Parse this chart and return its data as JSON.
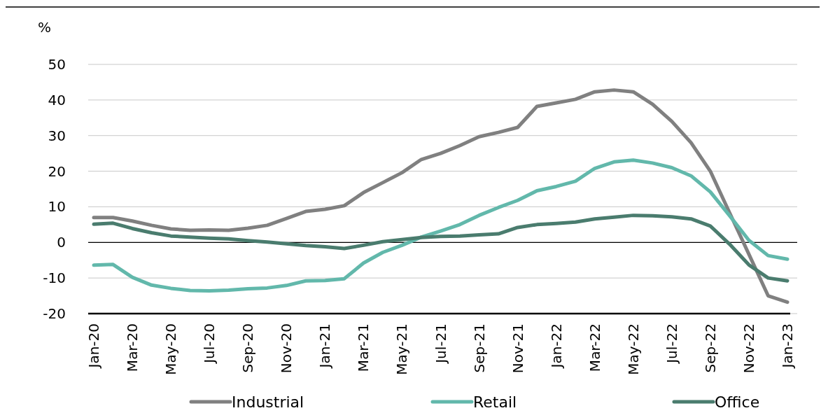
{
  "chart_data": {
    "type": "line",
    "ylabel": "%",
    "categories": [
      "Jan-20",
      null,
      "Mar-20",
      null,
      "May-20",
      null,
      "Jul-20",
      null,
      "Sep-20",
      null,
      "Nov-20",
      null,
      "Jan-21",
      null,
      "Mar-21",
      null,
      "May-21",
      null,
      "Jul-21",
      null,
      "Sep-21",
      null,
      "Nov-21",
      null,
      "Jan-22",
      null,
      "Mar-22",
      null,
      "May-22",
      null,
      "Jul-22",
      null,
      "Sep-22",
      null,
      "Nov-22",
      null,
      "Jan-23"
    ],
    "series": [
      {
        "name": "Industrial",
        "color": "#808080",
        "values": [
          7,
          7,
          6,
          4.8,
          3.8,
          3.4,
          3.5,
          3.4,
          4,
          4.8,
          6.7,
          8.7,
          9.3,
          10.3,
          14,
          16.8,
          19.6,
          23.3,
          25,
          27.2,
          29.7,
          30.9,
          32.3,
          38.2,
          39.2,
          40.2,
          42.3,
          42.8,
          42.3,
          38.8,
          34,
          28,
          20,
          8.3,
          -3.3,
          -15,
          -16.8
        ]
      },
      {
        "name": "Retail",
        "color": "#62b8ab",
        "values": [
          -6.4,
          -6.2,
          -9.8,
          -12,
          -12.9,
          -13.5,
          -13.6,
          -13.4,
          -13,
          -12.8,
          -12.1,
          -10.8,
          -10.7,
          -10.2,
          -5.8,
          -2.8,
          -0.8,
          1.5,
          3.2,
          5,
          7.6,
          9.8,
          11.8,
          14.5,
          15.7,
          17.2,
          20.8,
          22.6,
          23.1,
          22.3,
          21,
          18.7,
          14.2,
          7.5,
          0.6,
          -3.7,
          -4.7
        ]
      },
      {
        "name": "Office",
        "color": "#4a7c6e",
        "values": [
          5.1,
          5.4,
          3.9,
          2.7,
          1.8,
          1.5,
          1.2,
          1,
          0.5,
          0.1,
          -0.4,
          -0.9,
          -1.2,
          -1.7,
          -0.8,
          0.2,
          0.8,
          1.4,
          1.7,
          1.8,
          2.1,
          2.4,
          4.2,
          5,
          5.3,
          5.7,
          6.6,
          7.1,
          7.6,
          7.5,
          7.2,
          6.6,
          4.6,
          -0.5,
          -6.3,
          -10,
          -10.8
        ]
      }
    ],
    "ylim": [
      -20,
      50
    ],
    "yticks": [
      -20,
      -10,
      0,
      10,
      20,
      30,
      40,
      50
    ],
    "grid": "y",
    "legend": "bottom",
    "marker": "none",
    "line_style": "solid",
    "ref_lines": [
      {
        "axis": "y",
        "value": 0,
        "color": "#000000"
      }
    ]
  }
}
